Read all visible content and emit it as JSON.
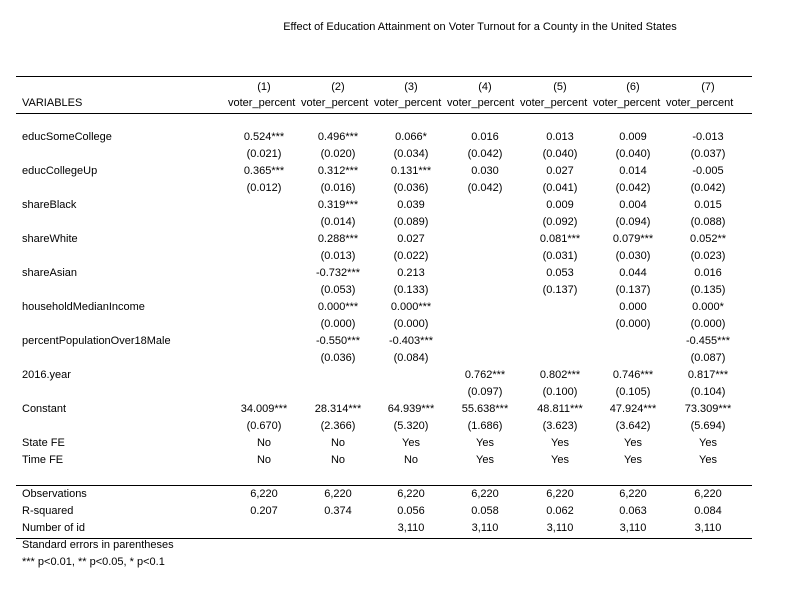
{
  "title": "Effect of Education Attainment on Voter Turnout for a County in the United States",
  "header": {
    "variables_label": "VARIABLES",
    "model_numbers": [
      "(1)",
      "(2)",
      "(3)",
      "(4)",
      "(5)",
      "(6)",
      "(7)"
    ],
    "dependent_vars": [
      "voter_percent",
      "voter_percent",
      "voter_percent",
      "voter_percent",
      "voter_percent",
      "voter_percent",
      "voter_percent"
    ]
  },
  "coefficient_rows": [
    {
      "name": "educSomeCollege",
      "coef": [
        "0.524***",
        "0.496***",
        "0.066*",
        "0.016",
        "0.013",
        "0.009",
        "-0.013"
      ],
      "se": [
        "(0.021)",
        "(0.020)",
        "(0.034)",
        "(0.042)",
        "(0.040)",
        "(0.040)",
        "(0.037)"
      ]
    },
    {
      "name": "educCollegeUp",
      "coef": [
        "0.365***",
        "0.312***",
        "0.131***",
        "0.030",
        "0.027",
        "0.014",
        "-0.005"
      ],
      "se": [
        "(0.012)",
        "(0.016)",
        "(0.036)",
        "(0.042)",
        "(0.041)",
        "(0.042)",
        "(0.042)"
      ]
    },
    {
      "name": "shareBlack",
      "coef": [
        "",
        "0.319***",
        "0.039",
        "",
        "0.009",
        "0.004",
        "0.015"
      ],
      "se": [
        "",
        "(0.014)",
        "(0.089)",
        "",
        "(0.092)",
        "(0.094)",
        "(0.088)"
      ]
    },
    {
      "name": "shareWhite",
      "coef": [
        "",
        "0.288***",
        "0.027",
        "",
        "0.081***",
        "0.079***",
        "0.052**"
      ],
      "se": [
        "",
        "(0.013)",
        "(0.022)",
        "",
        "(0.031)",
        "(0.030)",
        "(0.023)"
      ]
    },
    {
      "name": "shareAsian",
      "coef": [
        "",
        "-0.732***",
        "0.213",
        "",
        "0.053",
        "0.044",
        "0.016"
      ],
      "se": [
        "",
        "(0.053)",
        "(0.133)",
        "",
        "(0.137)",
        "(0.137)",
        "(0.135)"
      ]
    },
    {
      "name": "householdMedianIncome",
      "coef": [
        "",
        "0.000***",
        "0.000***",
        "",
        "",
        "0.000",
        "0.000*"
      ],
      "se": [
        "",
        "(0.000)",
        "(0.000)",
        "",
        "",
        "(0.000)",
        "(0.000)"
      ]
    },
    {
      "name": "percentPopulationOver18Male",
      "coef": [
        "",
        "-0.550***",
        "-0.403***",
        "",
        "",
        "",
        "-0.455***"
      ],
      "se": [
        "",
        "(0.036)",
        "(0.084)",
        "",
        "",
        "",
        "(0.087)"
      ]
    },
    {
      "name": "2016.year",
      "coef": [
        "",
        "",
        "",
        "0.762***",
        "0.802***",
        "0.746***",
        "0.817***"
      ],
      "se": [
        "",
        "",
        "",
        "(0.097)",
        "(0.100)",
        "(0.105)",
        "(0.104)"
      ]
    },
    {
      "name": "Constant",
      "coef": [
        "34.009***",
        "28.314***",
        "64.939***",
        "55.638***",
        "48.811***",
        "47.924***",
        "73.309***"
      ],
      "se": [
        "(0.670)",
        "(2.366)",
        "(5.320)",
        "(1.686)",
        "(3.623)",
        "(3.642)",
        "(5.694)"
      ]
    }
  ],
  "fixed_effects": [
    {
      "name": "State FE",
      "values": [
        "No",
        "No",
        "Yes",
        "Yes",
        "Yes",
        "Yes",
        "Yes"
      ]
    },
    {
      "name": "Time FE",
      "values": [
        "No",
        "No",
        "No",
        "Yes",
        "Yes",
        "Yes",
        "Yes"
      ]
    }
  ],
  "stats": [
    {
      "name": "Observations",
      "values": [
        "6,220",
        "6,220",
        "6,220",
        "6,220",
        "6,220",
        "6,220",
        "6,220"
      ]
    },
    {
      "name": "R-squared",
      "values": [
        "0.207",
        "0.374",
        "0.056",
        "0.058",
        "0.062",
        "0.063",
        "0.084"
      ]
    },
    {
      "name": "Number of id",
      "values": [
        "",
        "",
        "3,110",
        "3,110",
        "3,110",
        "3,110",
        "3,110"
      ]
    }
  ],
  "notes": [
    "Standard errors in parentheses",
    "*** p<0.01, ** p<0.05, * p<0.1"
  ]
}
